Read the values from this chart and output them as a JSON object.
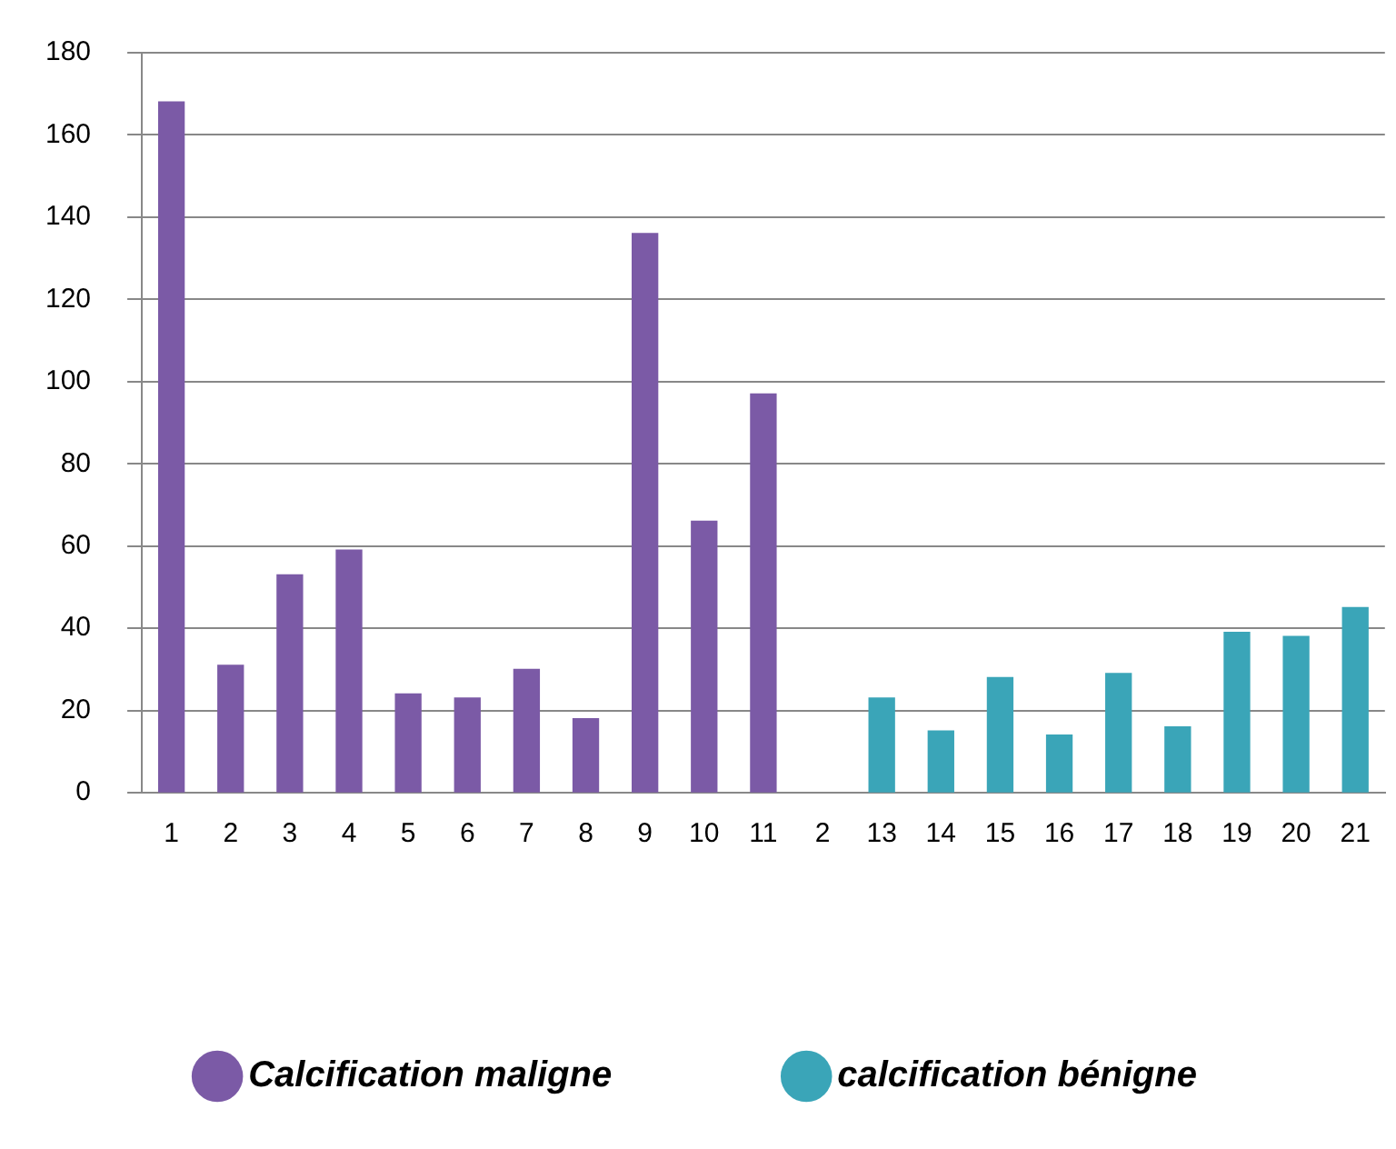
{
  "chart_data": {
    "type": "bar",
    "categories": [
      "1",
      "2",
      "3",
      "4",
      "5",
      "6",
      "7",
      "8",
      "9",
      "10",
      "11",
      "2",
      "13",
      "14",
      "15",
      "16",
      "17",
      "18",
      "19",
      "20",
      "21"
    ],
    "series": [
      {
        "name": "Calcification maligne",
        "color": "#7b5aa6",
        "values": [
          168,
          31,
          53,
          59,
          24,
          23,
          30,
          18,
          136,
          66,
          97,
          null,
          null,
          null,
          null,
          null,
          null,
          null,
          null,
          null,
          null
        ]
      },
      {
        "name": "calcification bénigne",
        "color": "#3aa5b8",
        "values": [
          null,
          null,
          null,
          null,
          null,
          null,
          null,
          null,
          null,
          null,
          null,
          null,
          23,
          15,
          28,
          14,
          29,
          16,
          39,
          38,
          45
        ]
      }
    ],
    "ylim": [
      0,
      180
    ],
    "yticks": [
      0,
      20,
      40,
      60,
      80,
      100,
      120,
      140,
      160,
      180
    ],
    "grid": "y",
    "legend": "bottom"
  }
}
